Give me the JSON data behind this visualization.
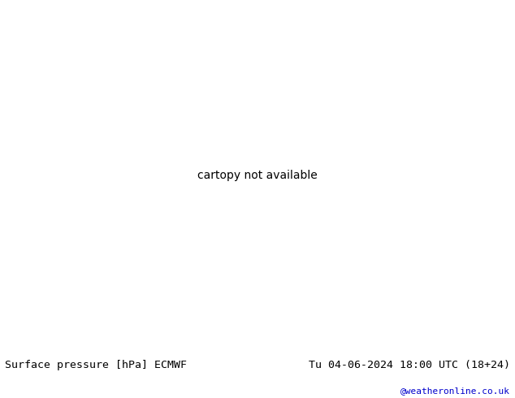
{
  "title_left": "Surface pressure [hPa] ECMWF",
  "title_right": "Tu 04-06-2024 18:00 UTC (18+24)",
  "watermark": "@weatheronline.co.uk",
  "watermark_color": "#0000cc",
  "bg_color": "#ffffff",
  "ocean_color": "#6688ee",
  "land_color": "#aaccaa",
  "glacier_color": "#cccccc",
  "contour_low_color": "#0000ff",
  "contour_high_color": "#ff0000",
  "contour_ref_color": "#000000",
  "contour_ref_value": 1013,
  "contour_interval": 4,
  "contour_min": 956,
  "contour_max": 1044,
  "label_fontsize": 5,
  "title_fontsize": 9.5,
  "watermark_fontsize": 8,
  "fig_width": 6.34,
  "fig_height": 4.9,
  "dpi": 100
}
